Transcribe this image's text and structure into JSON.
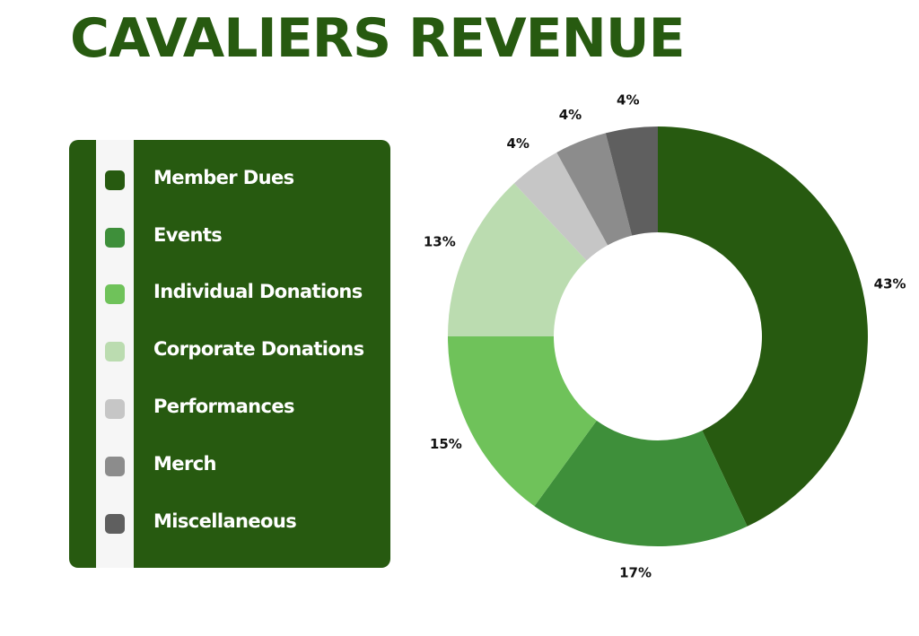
{
  "chart_data": {
    "type": "pie",
    "title": "CAVALIERS REVENUE",
    "categories": [
      "Member Dues",
      "Events",
      "Individual Donations",
      "Corporate Donations",
      "Performances",
      "Merch",
      "Miscellaneous"
    ],
    "values": [
      43,
      17,
      15,
      13,
      4,
      4,
      4
    ],
    "data_labels": [
      "43%",
      "17%",
      "15%",
      "13%",
      "4%",
      "4%",
      "4%"
    ],
    "colors": [
      "#275a10",
      "#3e8f3a",
      "#6fc25a",
      "#bbdcb0",
      "#c6c6c6",
      "#8c8c8c",
      "#5f5f5f"
    ],
    "legend": "left",
    "donut": true
  }
}
